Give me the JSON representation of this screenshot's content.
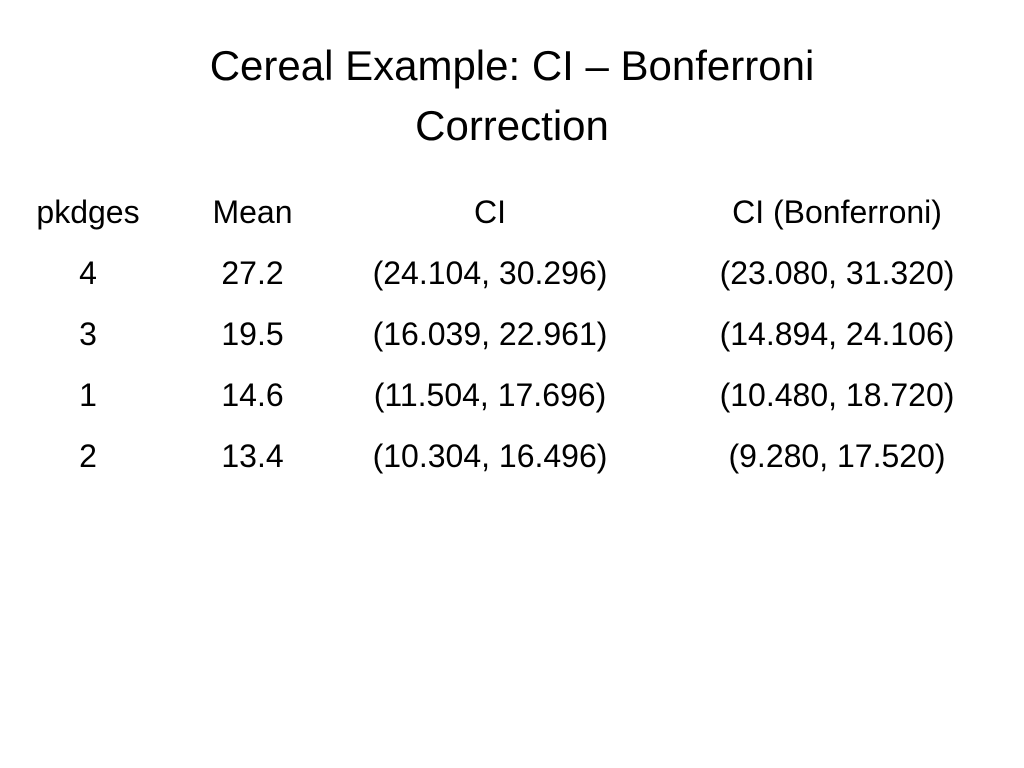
{
  "slide": {
    "title_line1": "Cereal Example: CI – Bonferroni",
    "title_line2": "Correction"
  },
  "table": {
    "headers": [
      "pkdges",
      "Mean",
      "CI",
      "CI (Bonferroni)"
    ],
    "rows": [
      [
        "4",
        "27.2",
        "(24.104, 30.296)",
        "(23.080, 31.320)"
      ],
      [
        "3",
        "19.5",
        "(16.039, 22.961)",
        "(14.894, 24.106)"
      ],
      [
        "1",
        "14.6",
        "(11.504, 17.696)",
        "(10.480, 18.720)"
      ],
      [
        "2",
        "13.4",
        "(10.304, 16.496)",
        "(9.280, 17.520)"
      ]
    ]
  }
}
